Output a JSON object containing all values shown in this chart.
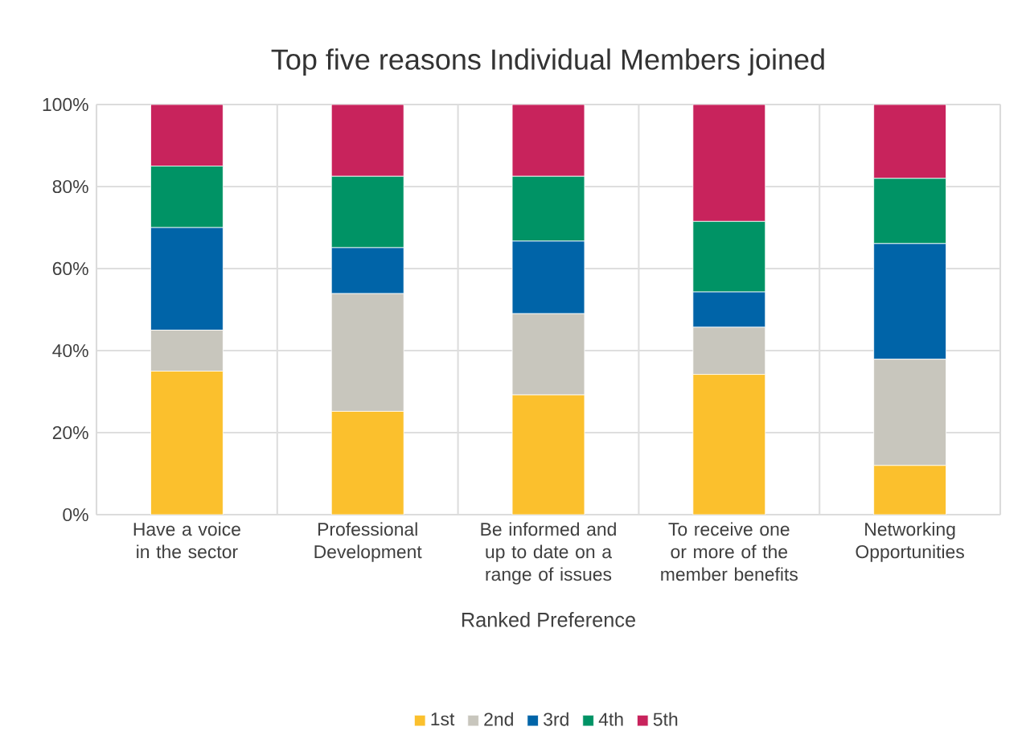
{
  "chart_data": {
    "type": "bar",
    "stacked": true,
    "title": "Top five  reasons Individual Members joined",
    "xlabel": "Ranked Preference",
    "categories": [
      "Have a voice in the sector",
      "Professional Development",
      "Be informed and up to date on a range of issues",
      "To receive one or more of the member benefits",
      "Networking Opportunities"
    ],
    "series": [
      {
        "name": "1st",
        "color": "#fbc02d",
        "values": [
          35,
          25.2,
          29.2,
          34.2,
          12
        ]
      },
      {
        "name": "2nd",
        "color": "#c8c6bd",
        "values": [
          10,
          28.7,
          19.8,
          11.5,
          25.9
        ]
      },
      {
        "name": "3rd",
        "color": "#0064a8",
        "values": [
          25,
          11.2,
          17.7,
          8.6,
          28.2
        ]
      },
      {
        "name": "4th",
        "color": "#009365",
        "values": [
          15,
          17.4,
          15.8,
          17.2,
          15.9
        ]
      },
      {
        "name": "5th",
        "color": "#c8235c",
        "values": [
          15,
          17.5,
          17.5,
          28.5,
          18
        ]
      }
    ],
    "ylim": [
      0,
      100
    ],
    "yticks": [
      {
        "value": 0,
        "label": "0%"
      },
      {
        "value": 20,
        "label": "20%"
      },
      {
        "value": 40,
        "label": "40%"
      },
      {
        "value": 60,
        "label": "60%"
      },
      {
        "value": 80,
        "label": "80%"
      },
      {
        "value": 100,
        "label": "100%"
      }
    ],
    "grid": true,
    "legend": "bottom"
  }
}
